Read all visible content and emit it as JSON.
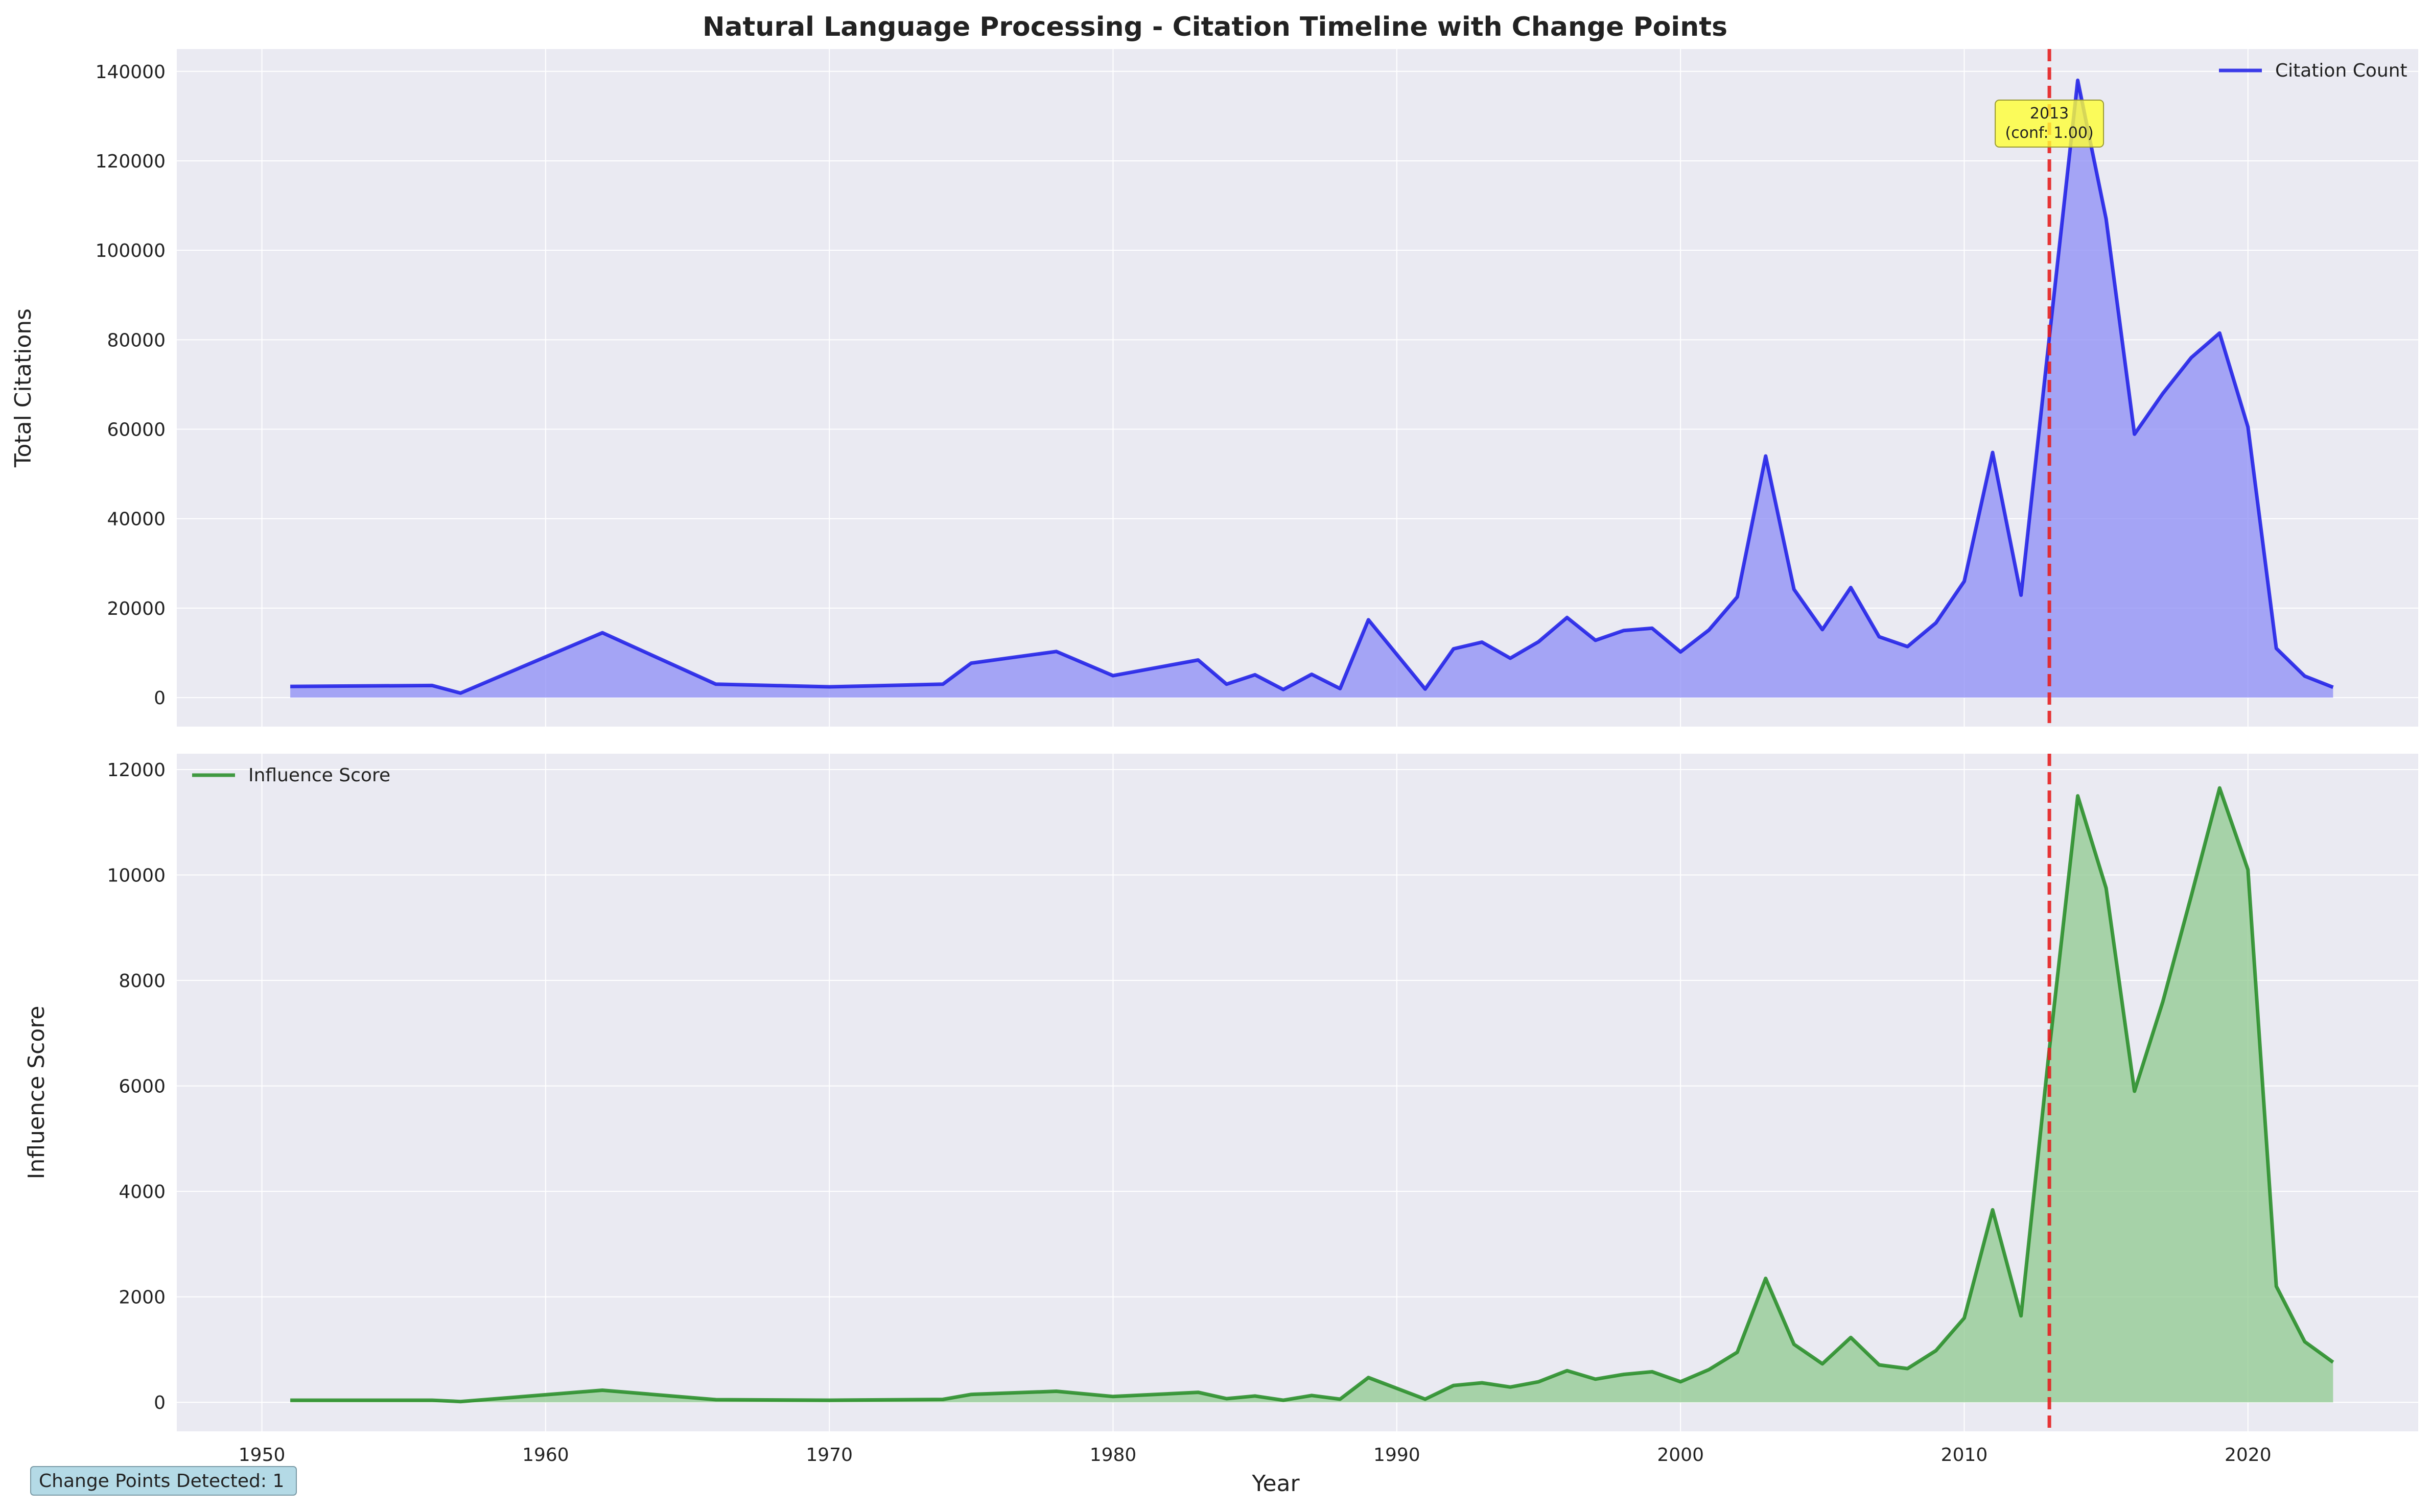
{
  "chart_data": {
    "type": "area",
    "title": "Natural Language Processing - Citation Timeline with Change Points",
    "xlabel": "Year",
    "xlim": [
      1947,
      2026
    ],
    "x_ticks": [
      1950,
      1960,
      1970,
      1980,
      1990,
      2000,
      2010,
      2020
    ],
    "grid": true,
    "x": [
      1951,
      1956,
      1957,
      1962,
      1966,
      1970,
      1974,
      1975,
      1978,
      1980,
      1983,
      1984,
      1985,
      1986,
      1987,
      1988,
      1989,
      1991,
      1992,
      1993,
      1994,
      1995,
      1996,
      1997,
      1998,
      1999,
      2000,
      2001,
      2002,
      2003,
      2004,
      2005,
      2006,
      2007,
      2008,
      2009,
      2010,
      2011,
      2012,
      2013,
      2014,
      2015,
      2016,
      2017,
      2018,
      2019,
      2020,
      2021,
      2022,
      2023
    ],
    "panels": [
      {
        "ylabel": "Total Citations",
        "ylim": [
          -6500,
          145000
        ],
        "y_ticks": [
          0,
          20000,
          40000,
          60000,
          80000,
          100000,
          120000,
          140000
        ],
        "legend_position": "upper right",
        "series": [
          {
            "name": "Citation Count",
            "color": "#1a1ae6",
            "fill": "#8c8cf5",
            "values": [
              2500,
              2700,
              1000,
              14500,
              3000,
              2400,
              3000,
              7700,
              10300,
              4900,
              8400,
              3000,
              5100,
              1800,
              5200,
              2000,
              17400,
              1900,
              10900,
              12400,
              8800,
              12500,
              17900,
              12800,
              15000,
              15500,
              10200,
              15100,
              22500,
              54000,
              24200,
              15200,
              24600,
              13600,
              11400,
              16700,
              26000,
              54800,
              22900,
              80600,
              138000,
              107000,
              58900,
              68000,
              76000,
              81500,
              60500,
              11000,
              4800,
              2300
            ]
          }
        ]
      },
      {
        "ylabel": "Influence Score",
        "ylim": [
          -550,
          12300
        ],
        "y_ticks": [
          0,
          2000,
          4000,
          6000,
          8000,
          10000,
          12000
        ],
        "legend_position": "upper left",
        "series": [
          {
            "name": "Influence Score",
            "color": "#228b22",
            "fill": "#8fc98f",
            "values": [
              40,
              40,
              15,
              230,
              50,
              40,
              55,
              150,
              210,
              110,
              190,
              70,
              120,
              40,
              130,
              60,
              470,
              60,
              320,
              370,
              290,
              390,
              600,
              440,
              530,
              580,
              390,
              620,
              950,
              2350,
              1100,
              730,
              1230,
              710,
              640,
              980,
              1600,
              3650,
              1640,
              6700,
              11500,
              9750,
              5900,
              7600,
              9600,
              11650,
              10100,
              2200,
              1150,
              760
            ]
          }
        ]
      }
    ],
    "change_points": [
      {
        "year": 2013,
        "label_year": "2013",
        "label_conf": "(conf: 1.00)",
        "color": "#e62020"
      }
    ],
    "footer": "Change Points Detected: 1"
  }
}
